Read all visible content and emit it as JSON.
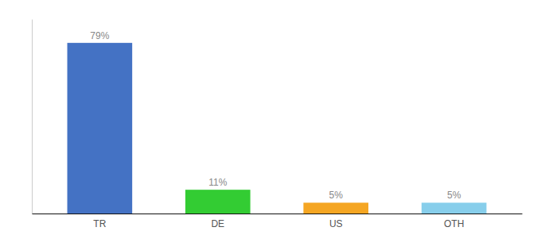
{
  "chart_data": {
    "type": "bar",
    "categories": [
      "TR",
      "DE",
      "US",
      "OTH"
    ],
    "values": [
      79,
      11,
      5,
      5
    ],
    "value_labels": [
      "79%",
      "11%",
      "5%",
      "5%"
    ],
    "colors": [
      "#4472c4",
      "#33cc33",
      "#f5a623",
      "#87ceeb"
    ],
    "ylim": [
      0,
      90
    ],
    "tick_labels": "x"
  }
}
